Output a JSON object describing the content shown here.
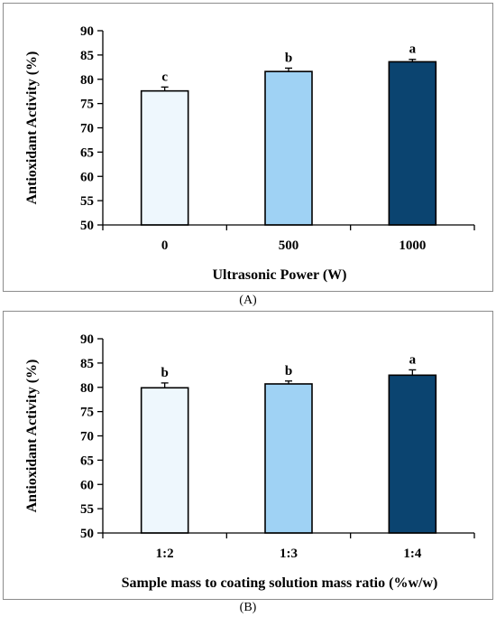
{
  "chart_data": [
    {
      "type": "bar",
      "ylabel": "Antioxidant Activity (%)",
      "xlabel": "Ultrasonic Power (W)",
      "categories": [
        "0",
        "500",
        "1000"
      ],
      "values": [
        77.6,
        81.6,
        83.6
      ],
      "errors": [
        0.8,
        0.7,
        0.5
      ],
      "letters": [
        "c",
        "b",
        "a"
      ],
      "ylim": [
        50,
        90
      ],
      "yticks": [
        50,
        55,
        60,
        65,
        70,
        75,
        80,
        85,
        90
      ],
      "bar_colors": [
        "#eef7fd",
        "#9fd2f4",
        "#0b4470"
      ],
      "grid": false,
      "caption": "(A)"
    },
    {
      "type": "bar",
      "ylabel": "Antioxidant Activity (%)",
      "xlabel": "Sample mass to coating solution mass ratio (%w/w)",
      "categories": [
        "1:2",
        "1:3",
        "1:4"
      ],
      "values": [
        79.9,
        80.7,
        82.5
      ],
      "errors": [
        1.0,
        0.6,
        1.1
      ],
      "letters": [
        "b",
        "b",
        "a"
      ],
      "ylim": [
        50,
        90
      ],
      "yticks": [
        50,
        55,
        60,
        65,
        70,
        75,
        80,
        85,
        90
      ],
      "bar_colors": [
        "#eef7fd",
        "#9fd2f4",
        "#0b4470"
      ],
      "grid": false,
      "caption": "(B)"
    }
  ]
}
